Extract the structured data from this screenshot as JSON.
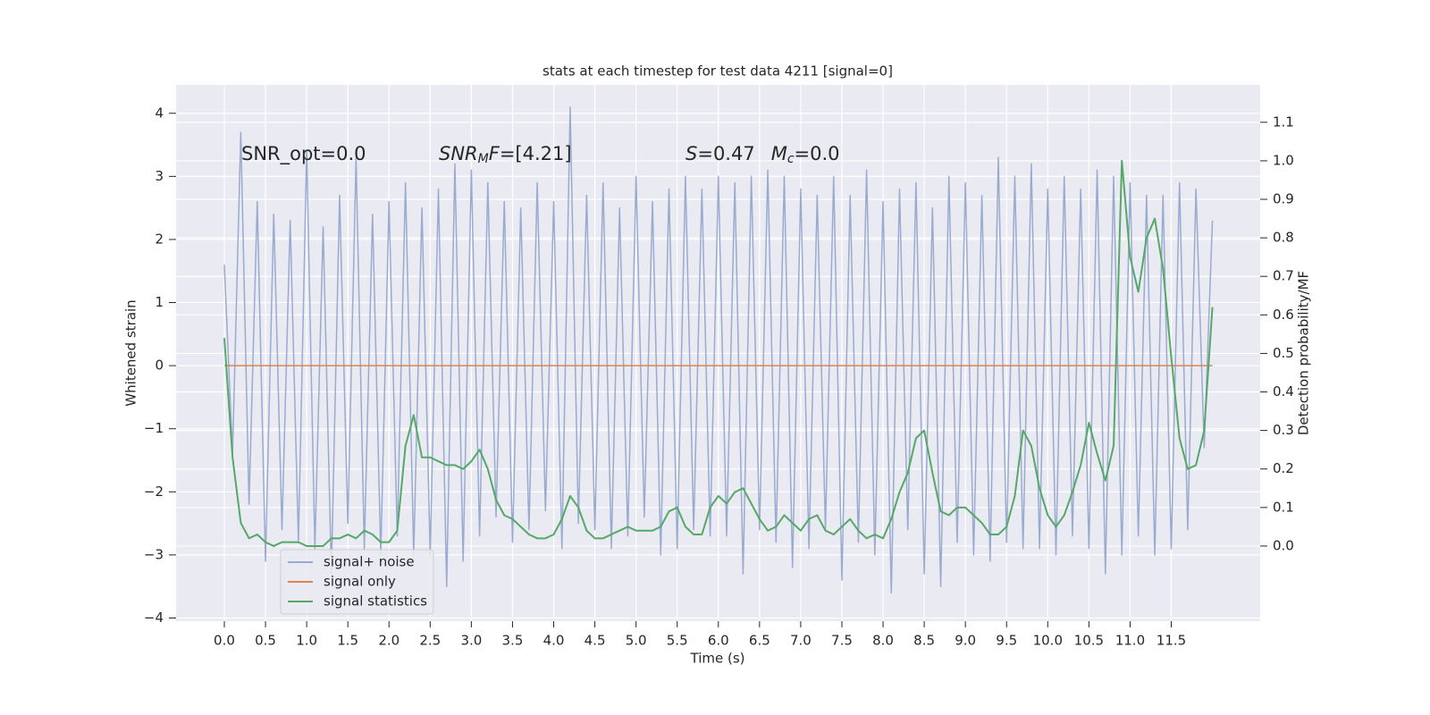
{
  "chart_data": {
    "type": "line",
    "title": "stats at each timestep for test data 4211 [signal=0]",
    "xlabel": "Time (s)",
    "ylabel": "Whitened strain",
    "y2label": "Detection probability/MF",
    "annotations": [
      "SNR_opt=0.0",
      [
        "SNR",
        "M",
        "F",
        "=[4.21]"
      ],
      [
        "S",
        "=0.47",
        "M",
        "c",
        "=0.0"
      ]
    ],
    "grid": true,
    "legend_loc": "lower left",
    "xlim": [
      -0.586,
      12.58
    ],
    "ylim": [
      -4.05,
      4.45
    ],
    "y2lim": [
      -0.195,
      1.197
    ],
    "xticks": [
      {
        "value": 0,
        "label": "0.0"
      },
      0.5,
      {
        "value": 1,
        "label": "1.0"
      },
      1.5,
      {
        "value": 2,
        "label": "2.0"
      },
      2.5,
      {
        "value": 3,
        "label": "3.0"
      },
      3.5,
      {
        "value": 4,
        "label": "4.0"
      },
      4.5,
      {
        "value": 5,
        "label": "5.0"
      },
      5.5,
      {
        "value": 6,
        "label": "6.0"
      },
      6.5,
      {
        "value": 7,
        "label": "7.0"
      },
      7.5,
      {
        "value": 8,
        "label": "8.0"
      },
      8.5,
      {
        "value": 9,
        "label": "9.0"
      },
      9.5,
      {
        "value": 10,
        "label": "10.0"
      },
      10.5,
      {
        "value": 11,
        "label": "11.0"
      },
      11.5
    ],
    "yticks": [
      {
        "value": -4,
        "label": "−4"
      },
      {
        "value": -3,
        "label": "−3"
      },
      {
        "value": -2,
        "label": "−2"
      },
      {
        "value": -1,
        "label": "−1"
      },
      0,
      1,
      2,
      3,
      4
    ],
    "y2ticks": [
      {
        "value": 0,
        "label": "0.0"
      },
      0.1,
      0.2,
      0.3,
      0.4,
      0.5,
      0.6,
      0.7,
      0.8,
      0.9,
      {
        "value": 1,
        "label": "1.0"
      },
      1.1
    ],
    "x": [
      0.0,
      0.1,
      0.2,
      0.3,
      0.4,
      0.5,
      0.6,
      0.7,
      0.8,
      0.9,
      1.0,
      1.1,
      1.2,
      1.3,
      1.4,
      1.5,
      1.6,
      1.7,
      1.8,
      1.9,
      2.0,
      2.1,
      2.2,
      2.3,
      2.4,
      2.5,
      2.6,
      2.7,
      2.8,
      2.9,
      3.0,
      3.1,
      3.2,
      3.3,
      3.4,
      3.5,
      3.6,
      3.7,
      3.8,
      3.9,
      4.0,
      4.1,
      4.2,
      4.3,
      4.4,
      4.5,
      4.6,
      4.7,
      4.8,
      4.9,
      5.0,
      5.1,
      5.2,
      5.3,
      5.4,
      5.5,
      5.6,
      5.7,
      5.8,
      5.9,
      6.0,
      6.1,
      6.2,
      6.3,
      6.4,
      6.5,
      6.6,
      6.7,
      6.8,
      6.9,
      7.0,
      7.1,
      7.2,
      7.3,
      7.4,
      7.5,
      7.6,
      7.7,
      7.8,
      7.9,
      8.0,
      8.1,
      8.2,
      8.3,
      8.4,
      8.5,
      8.6,
      8.7,
      8.8,
      8.9,
      9.0,
      9.1,
      9.2,
      9.3,
      9.4,
      9.5,
      9.6,
      9.7,
      9.8,
      9.9,
      10.0,
      10.1,
      10.2,
      10.3,
      10.4,
      10.5,
      10.6,
      10.7,
      10.8,
      10.9,
      11.0,
      11.1,
      11.2,
      11.3,
      11.4,
      11.5,
      11.6,
      11.7,
      11.8,
      11.9,
      12.0
    ],
    "series": [
      {
        "name": "signal+ noise",
        "color": "#9aabd0",
        "values": [
          1.6,
          -1.4,
          3.7,
          -2.2,
          2.6,
          -3.1,
          2.4,
          -2.6,
          2.3,
          -2.8,
          3.4,
          -2.9,
          2.2,
          -3.3,
          2.7,
          -2.5,
          3.3,
          -2.9,
          2.4,
          -3.0,
          2.6,
          -2.7,
          2.9,
          -3.0,
          2.5,
          -3.0,
          2.8,
          -3.5,
          3.2,
          -3.1,
          3.1,
          -2.7,
          2.9,
          -2.4,
          2.6,
          -2.8,
          2.5,
          -2.6,
          2.9,
          -2.3,
          2.6,
          -2.9,
          4.1,
          -2.5,
          2.7,
          -2.6,
          2.9,
          -2.9,
          2.5,
          -2.7,
          3.0,
          -2.4,
          2.6,
          -3.0,
          2.8,
          -2.9,
          3.0,
          -2.6,
          2.8,
          -2.7,
          3.0,
          -2.7,
          2.9,
          -3.3,
          3.0,
          -2.6,
          3.1,
          -2.8,
          3.0,
          -3.2,
          2.8,
          -2.9,
          2.7,
          -2.6,
          3.0,
          -3.4,
          2.7,
          -2.8,
          3.1,
          -3.0,
          2.6,
          -3.6,
          2.8,
          -2.6,
          2.9,
          -3.3,
          2.5,
          -3.5,
          3.0,
          -2.8,
          2.9,
          -3.0,
          2.7,
          -3.1,
          3.3,
          -2.8,
          3.0,
          -2.9,
          3.2,
          -2.9,
          2.8,
          -3.0,
          3.0,
          -2.7,
          2.8,
          -2.9,
          3.1,
          -3.3,
          3.0,
          -3.0,
          2.9,
          -2.7,
          2.7,
          -3.0,
          2.7,
          -2.9,
          2.9,
          -2.6,
          2.8,
          -1.3,
          2.3
        ]
      },
      {
        "name": "signal only",
        "color": "#dd8452",
        "x": [
          0,
          12
        ],
        "values": [
          0,
          0
        ]
      },
      {
        "name": "signal statistics",
        "color": "#55a868",
        "axis": "y2",
        "values": [
          0.54,
          0.23,
          0.06,
          0.02,
          0.03,
          0.01,
          0.0,
          0.01,
          0.01,
          0.01,
          0.0,
          0.0,
          0.0,
          0.02,
          0.02,
          0.03,
          0.02,
          0.04,
          0.03,
          0.01,
          0.01,
          0.04,
          0.26,
          0.34,
          0.23,
          0.23,
          0.22,
          0.21,
          0.21,
          0.2,
          0.22,
          0.25,
          0.2,
          0.12,
          0.08,
          0.07,
          0.05,
          0.03,
          0.02,
          0.02,
          0.03,
          0.07,
          0.13,
          0.1,
          0.04,
          0.02,
          0.02,
          0.03,
          0.04,
          0.05,
          0.04,
          0.04,
          0.04,
          0.05,
          0.09,
          0.1,
          0.05,
          0.03,
          0.03,
          0.1,
          0.13,
          0.11,
          0.14,
          0.15,
          0.11,
          0.07,
          0.04,
          0.05,
          0.08,
          0.06,
          0.04,
          0.07,
          0.08,
          0.04,
          0.03,
          0.05,
          0.07,
          0.04,
          0.02,
          0.03,
          0.02,
          0.07,
          0.14,
          0.19,
          0.28,
          0.3,
          0.19,
          0.09,
          0.08,
          0.1,
          0.1,
          0.08,
          0.06,
          0.03,
          0.03,
          0.05,
          0.13,
          0.3,
          0.26,
          0.15,
          0.08,
          0.05,
          0.08,
          0.14,
          0.21,
          0.32,
          0.24,
          0.17,
          0.26,
          1.0,
          0.75,
          0.66,
          0.8,
          0.85,
          0.72,
          0.49,
          0.28,
          0.2,
          0.21,
          0.3,
          0.62
        ]
      }
    ]
  }
}
